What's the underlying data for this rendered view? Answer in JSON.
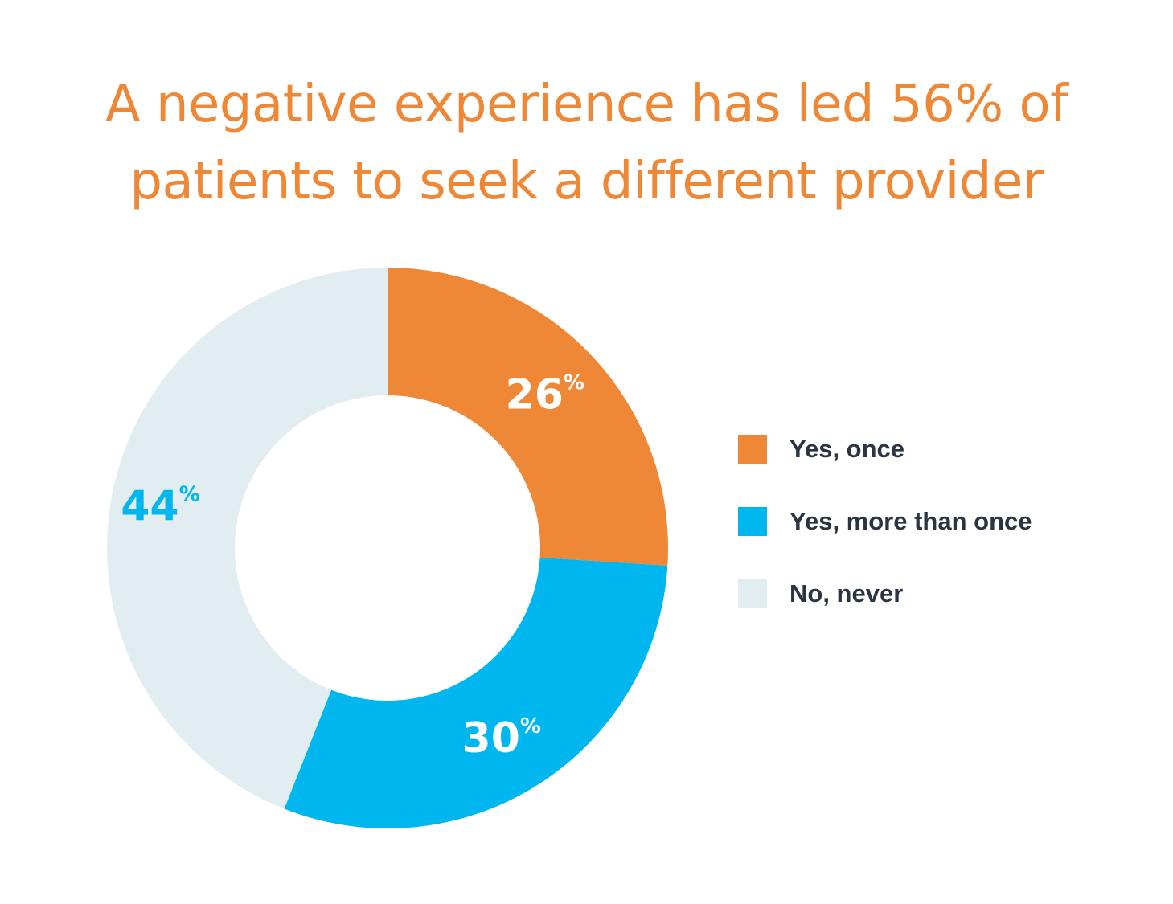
{
  "colors": {
    "title": "#ee8836",
    "text_on_slice": "#ffffff",
    "legend_text": "#2b3440"
  },
  "chart_data": {
    "type": "pie",
    "variant": "donut",
    "title_lines": [
      "A negative experience has led 56% of",
      "patients to seek a different provider"
    ],
    "categories": [
      "Yes, once",
      "Yes, more than once",
      "No, never"
    ],
    "values": [
      26,
      30,
      44
    ],
    "unit": "%",
    "slice_colors": [
      "#ee8836",
      "#00b6ee",
      "#e1edf1"
    ],
    "label_colors": [
      "#ffffff",
      "#ffffff",
      "#00b6ee"
    ],
    "data_labels": [
      "26",
      "30",
      "44"
    ],
    "legend_position": "right"
  }
}
